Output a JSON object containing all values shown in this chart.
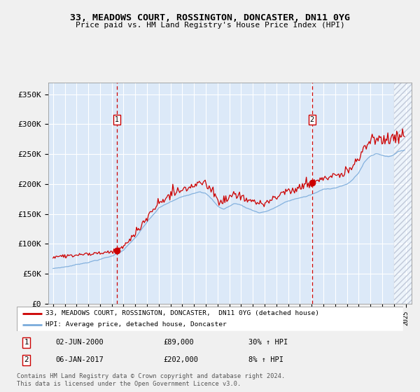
{
  "title": "33, MEADOWS COURT, ROSSINGTON, DONCASTER, DN11 0YG",
  "subtitle": "Price paid vs. HM Land Registry's House Price Index (HPI)",
  "ylim": [
    0,
    370000
  ],
  "yticks": [
    0,
    50000,
    100000,
    150000,
    200000,
    250000,
    300000,
    350000
  ],
  "ytick_labels": [
    "£0",
    "£50K",
    "£100K",
    "£150K",
    "£200K",
    "£250K",
    "£300K",
    "£350K"
  ],
  "x_start_year": 1995,
  "x_end_year": 2025,
  "plot_bg": "#dce9f8",
  "grid_color": "#ffffff",
  "red_line_color": "#cc0000",
  "blue_line_color": "#7aabdb",
  "marker1_date": 2000.42,
  "marker1_price": 89000,
  "marker1_label": "1",
  "marker1_text": "02-JUN-2000",
  "marker1_amount": "£89,000",
  "marker1_pct": "30% ↑ HPI",
  "marker2_date": 2017.03,
  "marker2_price": 202000,
  "marker2_label": "2",
  "marker2_text": "06-JAN-2017",
  "marker2_amount": "£202,000",
  "marker2_pct": "8% ↑ HPI",
  "legend_label1": "33, MEADOWS COURT, ROSSINGTON, DONCASTER,  DN11 0YG (detached house)",
  "legend_label2": "HPI: Average price, detached house, Doncaster",
  "footer": "Contains HM Land Registry data © Crown copyright and database right 2024.\nThis data is licensed under the Open Government Licence v3.0."
}
